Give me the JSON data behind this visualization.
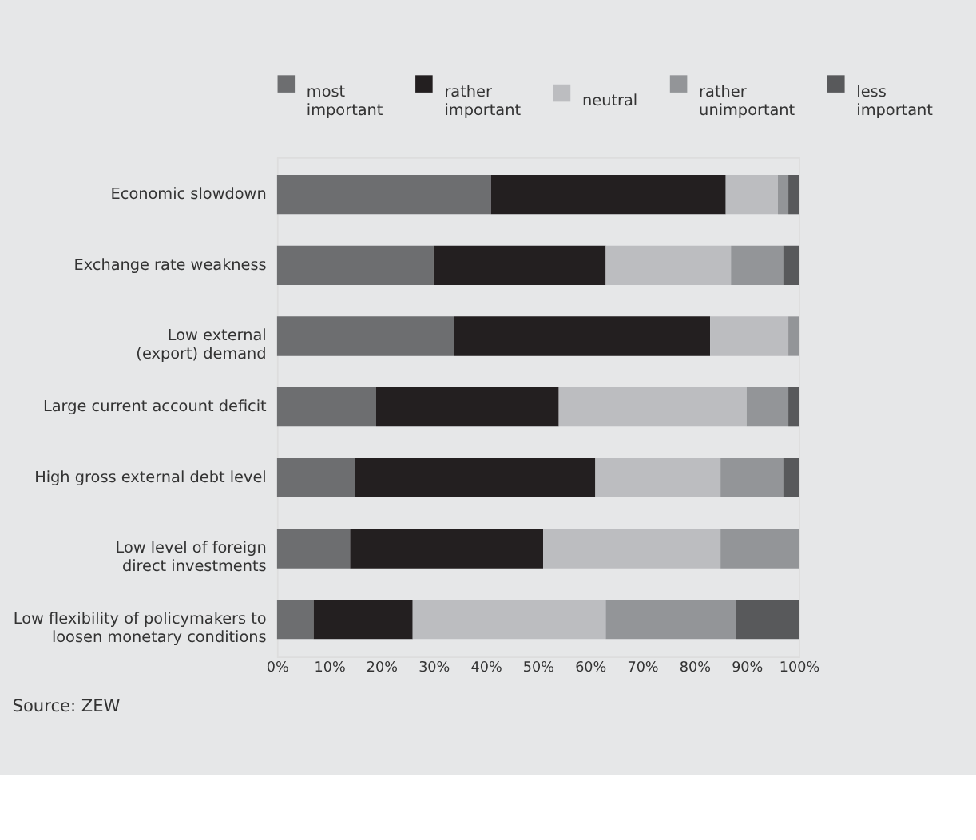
{
  "chart_data": {
    "type": "bar",
    "orientation": "horizontal",
    "stacked": true,
    "categories": [
      "Economic slowdown",
      "Exchange rate weakness",
      "Low external\n(export) demand",
      "Large current account deficit",
      "High gross external debt level",
      "Low level of foreign\ndirect investments",
      "Low flexibility of policymakers to\nloosen monetary conditions"
    ],
    "series": [
      {
        "name": "most\nimportant",
        "color": "#6d6e70",
        "values": [
          41,
          30,
          34,
          19,
          15,
          14,
          7
        ]
      },
      {
        "name": "rather\nimportant",
        "color": "#231f20",
        "values": [
          45,
          33,
          49,
          35,
          46,
          37,
          19
        ]
      },
      {
        "name": "neutral",
        "color": "#bcbdc0",
        "values": [
          10,
          24,
          15,
          36,
          24,
          34,
          37
        ]
      },
      {
        "name": "rather\nunimportant",
        "color": "#939598",
        "values": [
          2,
          10,
          2,
          8,
          12,
          15,
          25
        ]
      },
      {
        "name": "less\nimportant",
        "color": "#58595b",
        "values": [
          2,
          3,
          0,
          2,
          3,
          0,
          12
        ]
      }
    ],
    "xlim": [
      0,
      100
    ],
    "xticks": [
      {
        "value": 0,
        "label": "0%"
      },
      {
        "value": 10,
        "label": "10%"
      },
      {
        "value": 20,
        "label": "20%"
      },
      {
        "value": 30,
        "label": "30%"
      },
      {
        "value": 40,
        "label": "40%"
      },
      {
        "value": 50,
        "label": "50%"
      },
      {
        "value": 60,
        "label": "60%"
      },
      {
        "value": 70,
        "label": "70%"
      },
      {
        "value": 80,
        "label": "80%"
      },
      {
        "value": 90,
        "label": "90%"
      },
      {
        "value": 100,
        "label": "100%"
      }
    ],
    "legend": "top",
    "grid": false,
    "annotations": [
      "Source: ZEW"
    ]
  }
}
